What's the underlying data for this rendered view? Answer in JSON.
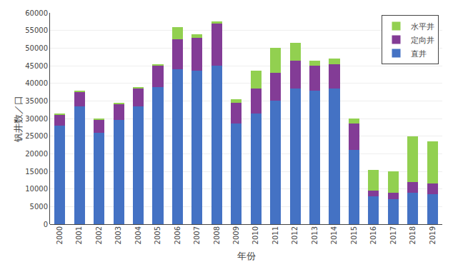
{
  "chart_data": {
    "type": "bar",
    "stacked": true,
    "xlabel": "年份",
    "ylabel": "钒井数／口",
    "categories": [
      "2000",
      "2001",
      "2002",
      "2003",
      "2004",
      "2005",
      "2006",
      "2007",
      "2008",
      "2009",
      "2010",
      "2011",
      "2012",
      "2013",
      "2014",
      "2015",
      "2016",
      "2017",
      "2018",
      "2019"
    ],
    "series": [
      {
        "name": "直井",
        "color": "#4472C4",
        "values": [
          28000,
          33500,
          26000,
          29500,
          33500,
          39000,
          44000,
          43500,
          45000,
          28500,
          31500,
          35000,
          38500,
          38000,
          38500,
          21000,
          8000,
          7000,
          9000,
          8500
        ]
      },
      {
        "name": "定向井",
        "color": "#833C96",
        "values": [
          3000,
          4000,
          3500,
          4500,
          5000,
          6000,
          8500,
          9500,
          12000,
          6000,
          7000,
          8000,
          8000,
          7000,
          7000,
          7500,
          1500,
          2000,
          3000,
          3000
        ]
      },
      {
        "name": "水平井",
        "color": "#92D050",
        "values": [
          500,
          500,
          500,
          500,
          500,
          500,
          3500,
          1000,
          500,
          1000,
          5000,
          7000,
          5000,
          1500,
          1500,
          1500,
          6000,
          6000,
          13000,
          12000
        ]
      }
    ],
    "ylim": [
      0,
      60000
    ],
    "yticks": [
      0,
      5000,
      10000,
      15000,
      20000,
      25000,
      30000,
      35000,
      40000,
      45000,
      50000,
      55000,
      60000
    ],
    "grid": true,
    "legend": "upper right"
  }
}
